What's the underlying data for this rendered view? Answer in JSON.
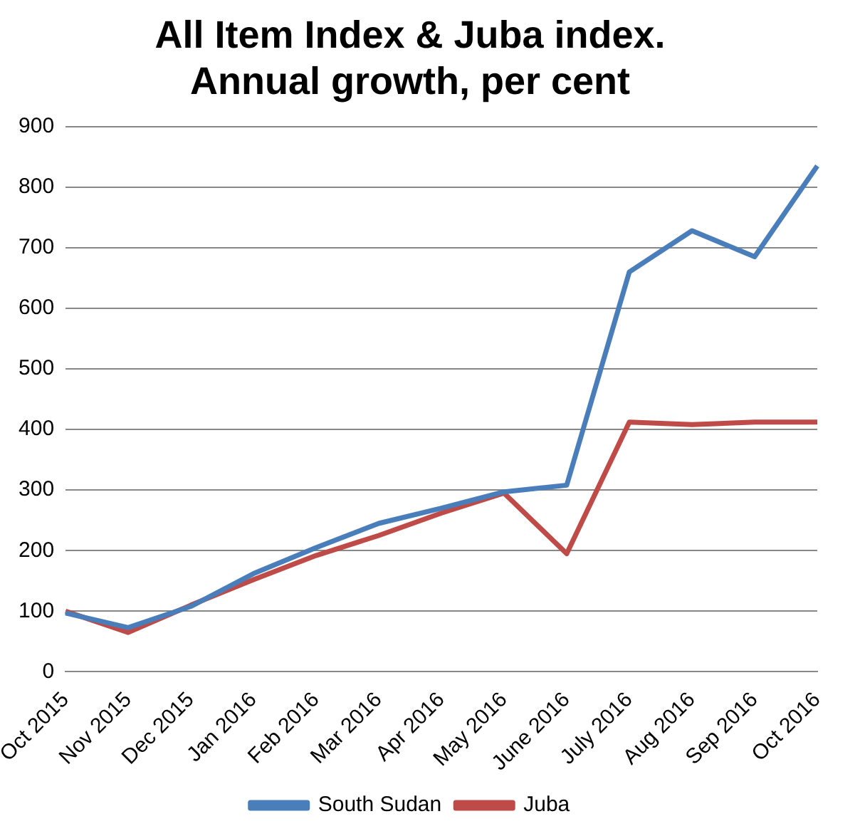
{
  "chart_data": {
    "type": "line",
    "title": "All Item Index & Juba index.\nAnnual growth, per cent",
    "categories": [
      "Oct 2015",
      "Nov 2015",
      "Dec 2015",
      "Jan 2016",
      "Feb 2016",
      "Mar 2016",
      "Apr 2016",
      "May 2016",
      "June 2016",
      "July 2016",
      "Aug 2016",
      "Sep 2016",
      "Oct 2016"
    ],
    "series": [
      {
        "name": "South Sudan",
        "color": "#4a7ebb",
        "values": [
          97,
          73,
          108,
          162,
          205,
          245,
          270,
          297,
          308,
          660,
          728,
          685,
          835
        ]
      },
      {
        "name": "Juba",
        "color": "#be4b48",
        "values": [
          100,
          65,
          110,
          152,
          192,
          225,
          262,
          295,
          195,
          412,
          408,
          412,
          412
        ]
      }
    ],
    "ylim": [
      0,
      900
    ],
    "yticks": [
      0,
      100,
      200,
      300,
      400,
      500,
      600,
      700,
      800,
      900
    ],
    "grid": "y",
    "legend": "bottom",
    "marker": "none",
    "line_style": "solid"
  }
}
